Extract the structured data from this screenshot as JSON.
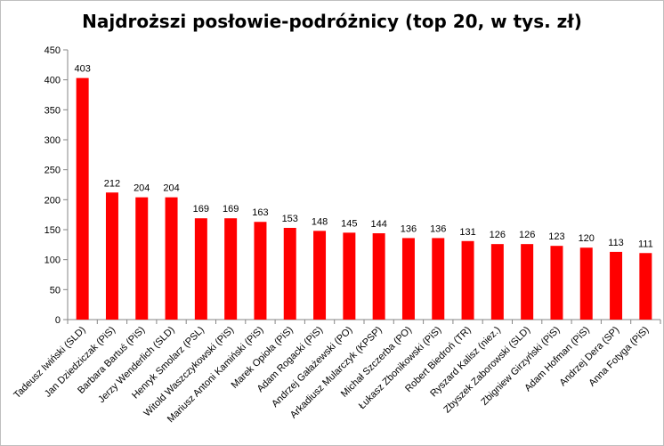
{
  "chart_data": {
    "type": "bar",
    "title": "Najdroższi posłowie-podróżnicy (top 20, w tys. zł)",
    "xlabel": "",
    "ylabel": "",
    "ylim": [
      0,
      450
    ],
    "yticks": [
      0,
      50,
      100,
      150,
      200,
      250,
      300,
      350,
      400,
      450
    ],
    "grid": false,
    "legend": "none",
    "bar_color": "#ff0000",
    "categories": [
      "Tadeusz Iwiński (SLD)",
      "Jan Dziedziczak (PiS)",
      "Barbara Bartuś (PiS)",
      "Jerzy Wenderlich (SLD)",
      "Henryk Smolarz (PSL)",
      "Witold Waszczykowski (PiS)",
      "Mariusz Antoni Kamiński (PiS)",
      "Marek Opioła (PiS)",
      "Adam Rogacki (PiS)",
      "Andrzej Gałażewski (PO)",
      "Arkadiusz Mularczyk (KPSP)",
      "Michał Szczerba (PO)",
      "Łukasz Zbonikowski (PiS)",
      "Robert Biedroń (TR)",
      "Ryszard Kalisz (niez.)",
      "Zbyszek Zaborowski (SLD)",
      "Zbigniew Girzyński (PiS)",
      "Adam Hofman (PiS)",
      "Andrzej Dera (SP)",
      "Anna Fotyga (PiS)"
    ],
    "values": [
      403,
      212,
      204,
      204,
      169,
      169,
      163,
      153,
      148,
      145,
      144,
      136,
      136,
      131,
      126,
      126,
      123,
      120,
      113,
      111
    ]
  }
}
